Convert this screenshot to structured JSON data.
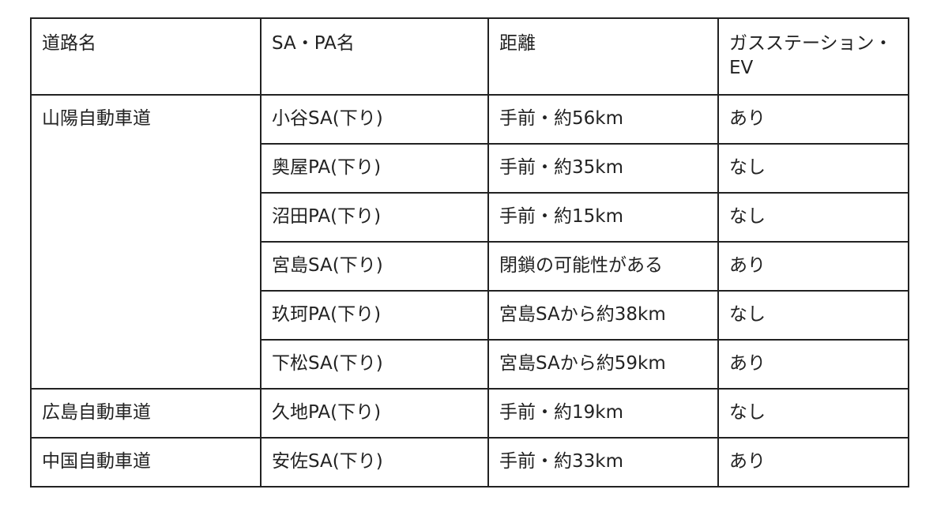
{
  "table": {
    "headers": [
      "道路名",
      "SA・PA名",
      "距離",
      "ガスステーション・EV"
    ],
    "groups": [
      {
        "road": "山陽自動車道",
        "rows": [
          {
            "name": "小谷SA(下り)",
            "distance": "手前・約56km",
            "gas_ev": "あり"
          },
          {
            "name": "奥屋PA(下り)",
            "distance": "手前・約35km",
            "gas_ev": "なし"
          },
          {
            "name": "沼田PA(下り)",
            "distance": "手前・約15km",
            "gas_ev": "なし"
          },
          {
            "name": "宮島SA(下り)",
            "distance": "閉鎖の可能性がある",
            "gas_ev": "あり"
          },
          {
            "name": "玖珂PA(下り)",
            "distance": "宮島SAから約38km",
            "gas_ev": "なし"
          },
          {
            "name": "下松SA(下り)",
            "distance": "宮島SAから約59km",
            "gas_ev": "あり"
          }
        ]
      },
      {
        "road": "広島自動車道",
        "rows": [
          {
            "name": "久地PA(下り)",
            "distance": "手前・約19km",
            "gas_ev": "なし"
          }
        ]
      },
      {
        "road": "中国自動車道",
        "rows": [
          {
            "name": "安佐SA(下り)",
            "distance": "手前・約33km",
            "gas_ev": "あり"
          }
        ]
      }
    ]
  }
}
